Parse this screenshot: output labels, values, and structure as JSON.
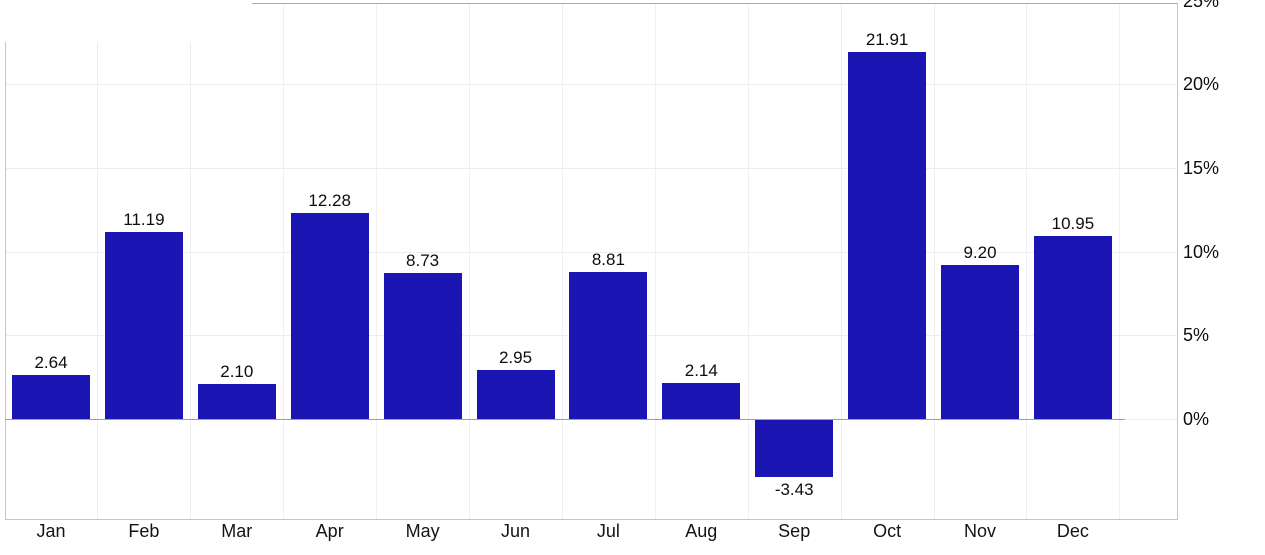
{
  "chart_data": {
    "type": "bar",
    "title": "",
    "xlabel": "",
    "ylabel": "",
    "categories": [
      "Jan",
      "Feb",
      "Mar",
      "Apr",
      "May",
      "Jun",
      "Jul",
      "Aug",
      "Sep",
      "Oct",
      "Nov",
      "Dec"
    ],
    "values": [
      2.64,
      11.19,
      2.1,
      12.28,
      8.73,
      2.95,
      8.81,
      2.14,
      -3.43,
      21.91,
      9.2,
      10.95
    ],
    "value_labels": [
      "2.64",
      "11.19",
      "2.10",
      "12.28",
      "8.73",
      "2.95",
      "8.81",
      "2.14",
      "-3.43",
      "21.91",
      "9.20",
      "10.95"
    ],
    "y_axis_side": "right",
    "y_ticks": [
      {
        "label": "0%",
        "value": 0
      },
      {
        "label": "5%",
        "value": 5
      },
      {
        "label": "10%",
        "value": 10
      },
      {
        "label": "15%",
        "value": 15
      },
      {
        "label": "20%",
        "value": 20
      },
      {
        "label": "25%",
        "value": 25
      }
    ],
    "ylim": [
      -6,
      25
    ],
    "grid": true,
    "legend": false,
    "bar_color": "#1a15b3"
  },
  "colors": {
    "bar": "#1a15b3",
    "background": "#ffffff",
    "gridline_h": "#ededed",
    "gridline_v": "#efefef",
    "axis_border": "#c6c6c6",
    "zero_line": "#9e9e9e",
    "top_line": "#ababab",
    "label_text": "#0d0d0d"
  }
}
